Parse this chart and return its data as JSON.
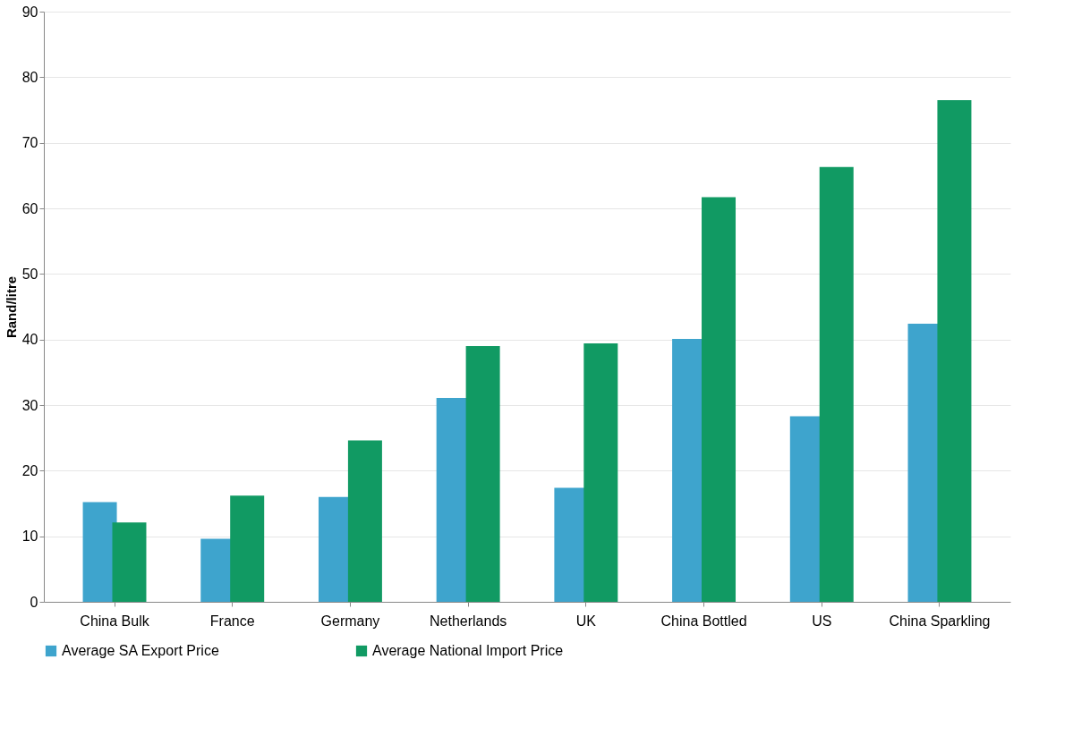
{
  "chart_data": {
    "type": "bar",
    "ylabel": "Rand/litre",
    "categories": [
      "China Bulk",
      "France",
      "Germany",
      "Netherlands",
      "UK",
      "China Bottled",
      "US",
      "China Sparkling"
    ],
    "series": [
      {
        "name": "Average SA Export Price",
        "color": "#3ea4cd",
        "values": [
          15.2,
          9.6,
          16.0,
          31.1,
          17.4,
          40.1,
          28.3,
          42.4
        ]
      },
      {
        "name": "Average National Import Price",
        "color": "#119a63",
        "values": [
          12.1,
          16.2,
          24.6,
          39.0,
          39.4,
          61.7,
          66.3,
          76.5
        ]
      }
    ],
    "ylim": [
      0,
      90
    ],
    "yticks": [
      0,
      10,
      20,
      30,
      40,
      50,
      60,
      70,
      80,
      90
    ],
    "grid": "y",
    "legend": "bottom"
  }
}
